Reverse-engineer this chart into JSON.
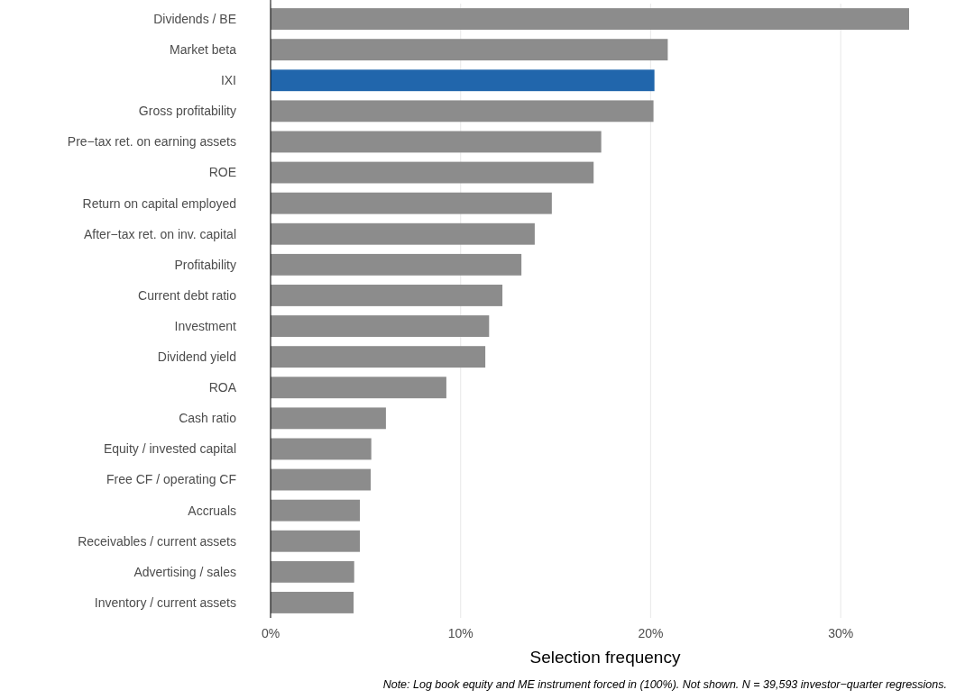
{
  "chart_data": {
    "type": "bar",
    "orientation": "horizontal",
    "categories": [
      "Dividends / BE",
      "Market beta",
      "IXI",
      "Gross profitability",
      "Pre−tax ret. on earning assets",
      "ROE",
      "Return on capital employed",
      "After−tax ret. on inv. capital",
      "Profitability",
      "Current debt ratio",
      "Investment",
      "Dividend yield",
      "ROA",
      "Cash ratio",
      "Equity / invested capital",
      "Free CF / operating CF",
      "Accruals",
      "Receivables / current assets",
      "Advertising / sales",
      "Inventory / current assets"
    ],
    "values": [
      33.6,
      20.9,
      20.2,
      20.15,
      17.4,
      17.0,
      14.8,
      13.9,
      13.2,
      12.2,
      11.5,
      11.3,
      9.25,
      6.07,
      5.3,
      5.27,
      4.7,
      4.7,
      4.4,
      4.37
    ],
    "colors": [
      "#8c8c8c",
      "#8c8c8c",
      "#2166ac",
      "#8c8c8c",
      "#8c8c8c",
      "#8c8c8c",
      "#8c8c8c",
      "#8c8c8c",
      "#8c8c8c",
      "#8c8c8c",
      "#8c8c8c",
      "#8c8c8c",
      "#8c8c8c",
      "#8c8c8c",
      "#8c8c8c",
      "#8c8c8c",
      "#8c8c8c",
      "#8c8c8c",
      "#8c8c8c",
      "#8c8c8c"
    ],
    "xlim": [
      0,
      33.6
    ],
    "xticks": [
      {
        "value": 0,
        "label": "0%"
      },
      {
        "value": 10,
        "label": "10%"
      },
      {
        "value": 20,
        "label": "20%"
      },
      {
        "value": 30,
        "label": "30%"
      }
    ],
    "xlabel": "Selection frequency",
    "grid": "x",
    "annotations": [
      "Note: Log book equity and ME instrument forced in (100%). Not shown. N = 39,593 investor−quarter regressions."
    ]
  }
}
